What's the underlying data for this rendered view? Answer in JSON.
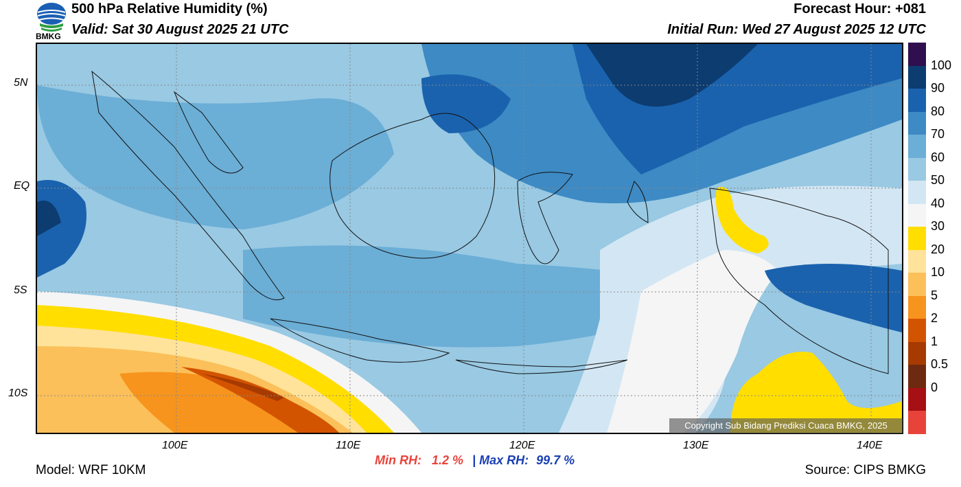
{
  "header": {
    "title": "500 hPa Relative Humidity (%)",
    "valid": "Valid: Sat 30 August 2025 21 UTC",
    "forecast_hour": "Forecast Hour: +081",
    "initial_run": "Initial Run: Wed 27 August 2025 12 UTC",
    "logo_text": "BMKG"
  },
  "map": {
    "lat_labels": [
      "5N",
      "EQ",
      "5S",
      "10S"
    ],
    "lon_labels": [
      "100E",
      "110E",
      "120E",
      "130E",
      "140E"
    ],
    "colors": {
      "dry_0": "#e8433a",
      "dry_5": "#d35400",
      "orange": "#f7941d",
      "light_orange": "#fbc05a",
      "pale": "#ffe39a",
      "yellow": "#ffde00",
      "white": "#f5f5f5",
      "very_light_blue": "#d3e6f3",
      "light_blue": "#99c9e3",
      "mid_blue": "#6baed6",
      "blue": "#3d8ac4",
      "dark_blue": "#1a62ad",
      "navy": "#0c3c70"
    }
  },
  "colorbar": {
    "labels": [
      "100",
      "90",
      "80",
      "70",
      "60",
      "50",
      "40",
      "30",
      "20",
      "10",
      "5",
      "2",
      "1",
      "0.5",
      "0"
    ],
    "colors": [
      "#2f0f4d",
      "#0c3c70",
      "#1a62ad",
      "#3d8ac4",
      "#6baed6",
      "#99c9e3",
      "#d3e6f3",
      "#f5f5f5",
      "#ffde00",
      "#ffe39a",
      "#fbc05a",
      "#f7941d",
      "#d35400",
      "#a63a00",
      "#6e2a10",
      "#a60f14",
      "#e8433a"
    ]
  },
  "footer": {
    "model": "Model: WRF 10KM",
    "source": "Source: CIPS BMKG",
    "min_rh_label": "Min RH:",
    "min_rh_value": "1.2 %",
    "separator": "|",
    "max_rh_label": "Max RH:",
    "max_rh_value": "99.7 %",
    "copyright": "Copyright Sub Bidang Prediksi Cuaca BMKG, 2025"
  }
}
